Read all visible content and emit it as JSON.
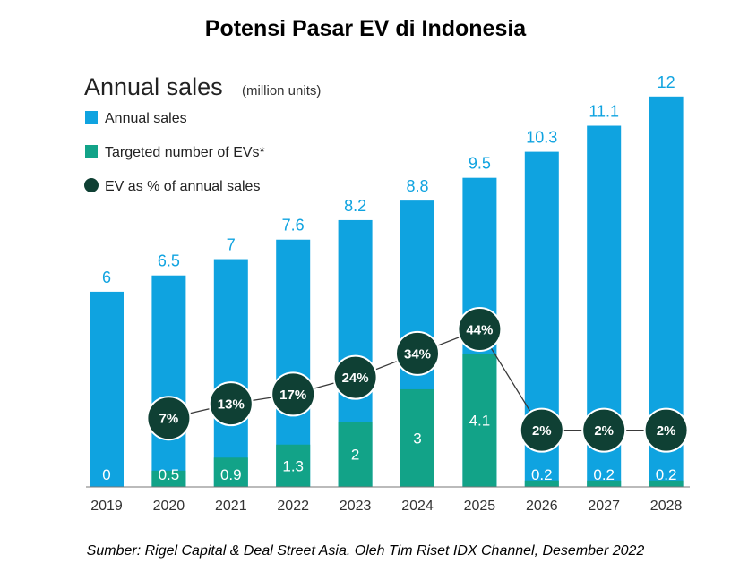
{
  "title": "Potensi Pasar EV di Indonesia",
  "source": "Sumber: Rigel Capital & Deal Street Asia. Oleh Tim Riset IDX Channel, Desember 2022",
  "colors": {
    "annual": "#0fa3e0",
    "ev": "#12a388",
    "pct": "#0f4034",
    "axis": "#444444",
    "text": "#222222"
  },
  "chart_data": {
    "type": "bar",
    "title": "Annual sales",
    "subtitle": "(million units)",
    "legend": [
      "Annual sales",
      "Targeted number of EVs*",
      "EV as % of annual sales"
    ],
    "categories": [
      "2019",
      "2020",
      "2021",
      "2022",
      "2023",
      "2024",
      "2025",
      "2026",
      "2027",
      "2028"
    ],
    "series": [
      {
        "name": "Annual sales",
        "values": [
          6,
          6.5,
          7,
          7.6,
          8.2,
          8.8,
          9.5,
          10.3,
          11.1,
          12
        ]
      },
      {
        "name": "Targeted number of EVs*",
        "values": [
          0,
          0.5,
          0.9,
          1.3,
          2,
          3,
          4.1,
          0.2,
          0.2,
          0.2
        ]
      },
      {
        "name": "EV as % of annual sales",
        "values": [
          null,
          "7%",
          "13%",
          "17%",
          "24%",
          "34%",
          "44%",
          "2%",
          "2%",
          "2%"
        ]
      }
    ],
    "annual_labels": [
      "6",
      "6.5",
      "7",
      "7.6",
      "8.2",
      "8.8",
      "9.5",
      "10.3",
      "11.1",
      "12"
    ],
    "ev_labels": [
      "0",
      "0.5",
      "0.9",
      "1.3",
      "2",
      "3",
      "4.1",
      "0.2",
      "0.2",
      "0.2"
    ],
    "pct_values": [
      null,
      7,
      13,
      17,
      24,
      34,
      44,
      2,
      2,
      2
    ],
    "ylim": [
      0,
      12.6
    ]
  }
}
